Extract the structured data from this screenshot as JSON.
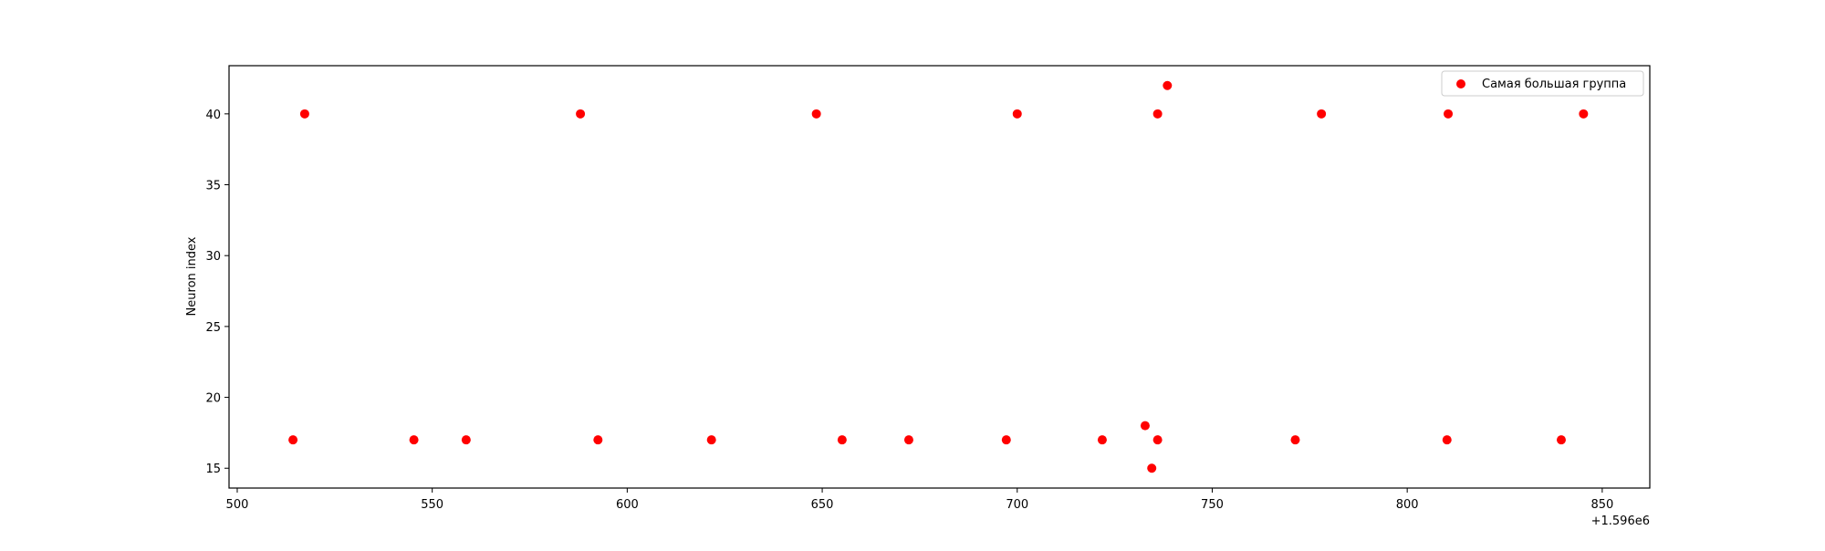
{
  "chart_data": {
    "type": "scatter",
    "title": "",
    "xlabel": "",
    "ylabel": "Neuron index",
    "x_offset_text": "+1.596e6",
    "xlim": [
      1596497.9,
      1596862.2
    ],
    "ylim": [
      13.6,
      43.4
    ],
    "xticks": [
      1596500,
      1596550,
      1596600,
      1596650,
      1596700,
      1596750,
      1596800,
      1596850
    ],
    "xtick_labels": [
      "500",
      "550",
      "600",
      "650",
      "700",
      "750",
      "800",
      "850"
    ],
    "yticks": [
      15,
      20,
      25,
      30,
      35,
      40
    ],
    "ytick_labels": [
      "15",
      "20",
      "25",
      "30",
      "35",
      "40"
    ],
    "grid": false,
    "legend": {
      "position": "top-right",
      "entries": [
        "Самая большая группа"
      ]
    },
    "series": [
      {
        "name": "Самая большая группа",
        "color": "#ff0000",
        "marker": "circle",
        "points": [
          [
            1596514.3,
            17
          ],
          [
            1596517.3,
            40
          ],
          [
            1596545.3,
            17
          ],
          [
            1596558.7,
            17
          ],
          [
            1596588.0,
            40
          ],
          [
            1596592.5,
            17
          ],
          [
            1596621.6,
            17
          ],
          [
            1596648.5,
            40
          ],
          [
            1596655.1,
            17
          ],
          [
            1596672.2,
            17
          ],
          [
            1596697.2,
            17
          ],
          [
            1596700.0,
            40
          ],
          [
            1596721.8,
            17
          ],
          [
            1596732.8,
            18
          ],
          [
            1596734.5,
            15
          ],
          [
            1596736.0,
            40
          ],
          [
            1596736.0,
            17
          ],
          [
            1596738.5,
            42
          ],
          [
            1596771.3,
            17
          ],
          [
            1596778.0,
            40
          ],
          [
            1596810.2,
            17
          ],
          [
            1596810.5,
            40
          ],
          [
            1596839.5,
            17
          ],
          [
            1596845.2,
            40
          ]
        ]
      }
    ]
  }
}
